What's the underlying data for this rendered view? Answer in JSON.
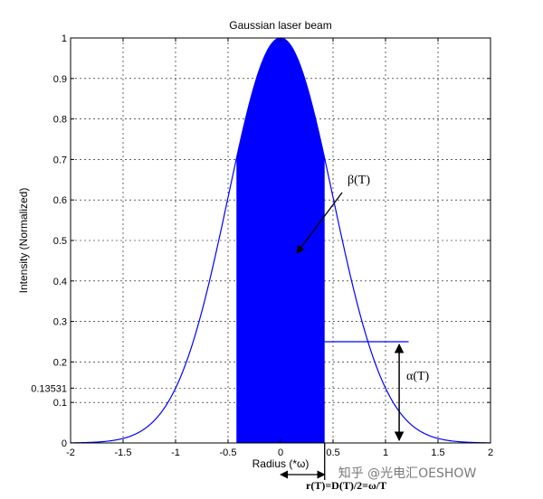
{
  "chart_data": {
    "type": "area",
    "title": "Gaussian laser beam",
    "xlabel": "Radius (*ω)",
    "ylabel": "Intensity (Normalized)",
    "xlim": [
      -2,
      2
    ],
    "ylim": [
      0,
      1
    ],
    "grid": true,
    "x_ticks": [
      "-2",
      "-1.5",
      "-1",
      "-0.5",
      "0",
      "0.5",
      "1",
      "1.5",
      "2"
    ],
    "y_ticks": [
      "0",
      "0.1",
      "0.13531",
      "0.2",
      "0.3",
      "0.4",
      "0.5",
      "0.6",
      "0.7",
      "0.8",
      "0.9",
      "1"
    ],
    "curve": {
      "function": "exp(-2*x^2)",
      "x_range": [
        -2,
        2
      ]
    },
    "filled_region": {
      "x_range": [
        -0.42,
        0.42
      ],
      "color": "#0000ff"
    },
    "threshold_level": 0.25,
    "line_color": "#0000ff",
    "annotations": {
      "beta": "β(T)",
      "alpha": "α(T)",
      "radius": "r(T)=D(T)/2=ω/T"
    }
  },
  "watermark": "知乎 @光电汇OESHOW"
}
